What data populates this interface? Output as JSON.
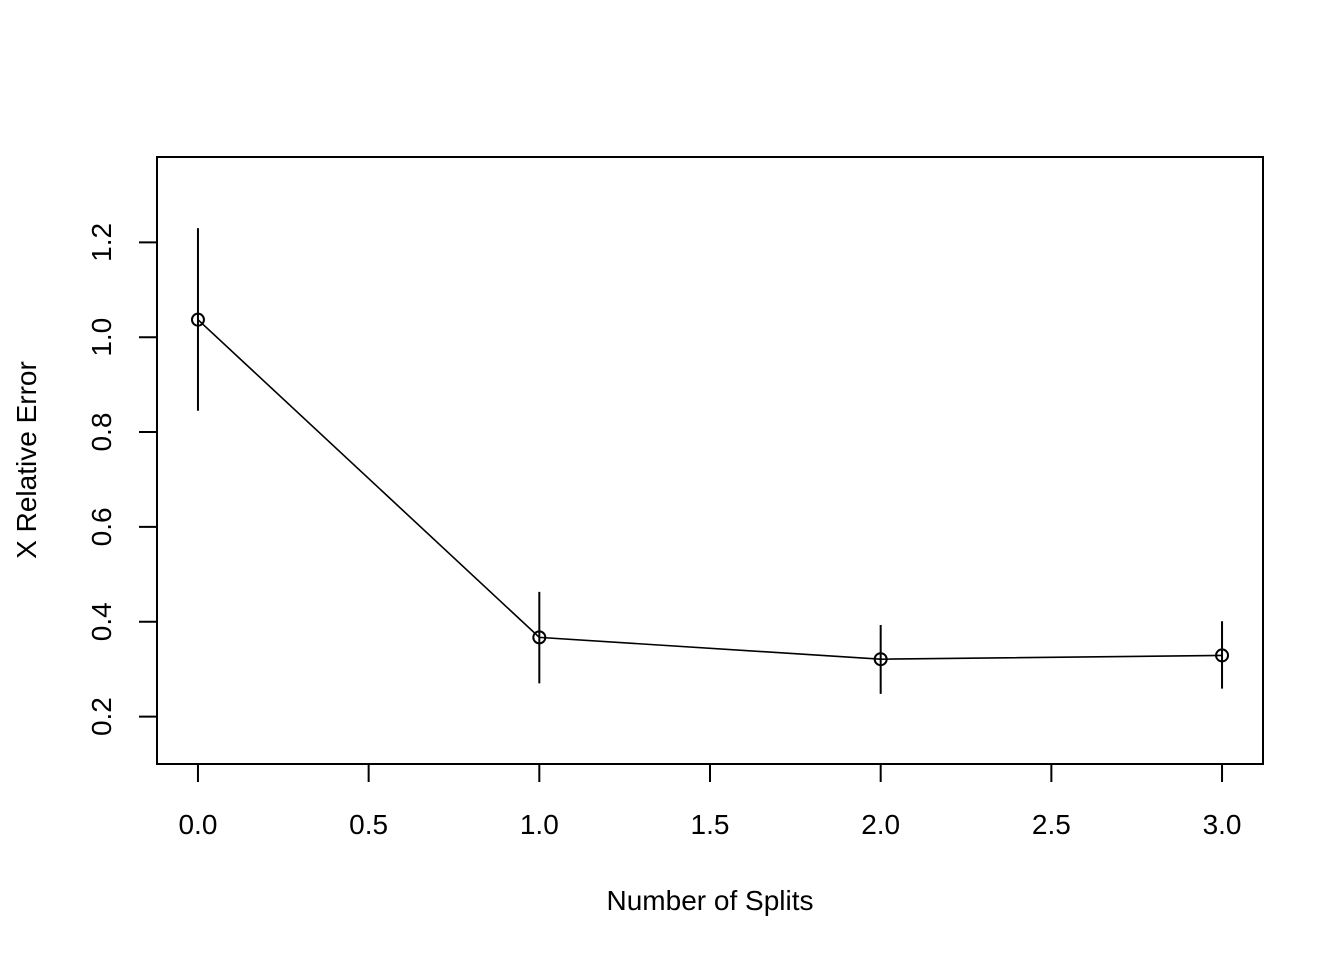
{
  "chart_data": {
    "type": "line",
    "xlabel": "Number of Splits",
    "ylabel": "X Relative Error",
    "xlim": [
      -0.12,
      3.12
    ],
    "ylim": [
      0.1,
      1.38
    ],
    "x_ticks": [
      0.0,
      0.5,
      1.0,
      1.5,
      2.0,
      2.5,
      3.0
    ],
    "x_tick_labels": [
      "0.0",
      "0.5",
      "1.0",
      "1.5",
      "2.0",
      "2.5",
      "3.0"
    ],
    "y_ticks": [
      0.2,
      0.4,
      0.6,
      0.8,
      1.0,
      1.2
    ],
    "y_tick_labels": [
      "0.2",
      "0.4",
      "0.6",
      "0.8",
      "1.0",
      "1.2"
    ],
    "grid": false,
    "series": [
      {
        "x": [
          0,
          1,
          2,
          3
        ],
        "y": [
          1.037,
          0.367,
          0.321,
          0.329
        ],
        "err_low": [
          0.845,
          0.27,
          0.248,
          0.259
        ],
        "err_high": [
          1.23,
          0.463,
          0.393,
          0.401
        ],
        "marker": "open-circle",
        "color": "#000000"
      }
    ]
  }
}
